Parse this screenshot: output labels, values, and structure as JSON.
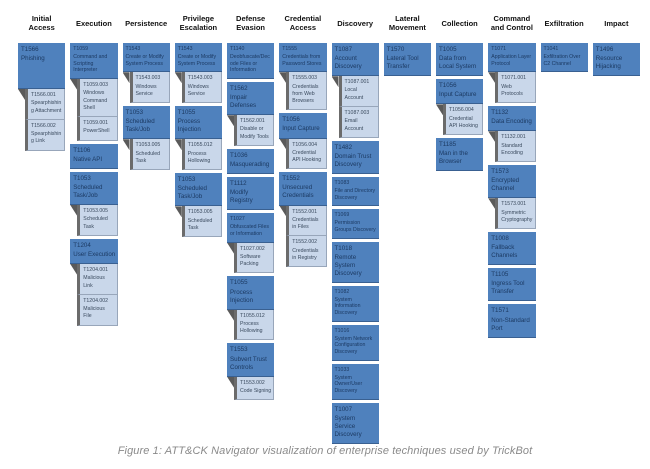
{
  "caption": "Figure 1: ATT&CK Navigator visualization of enterprise techniques used by TrickBot",
  "colors": {
    "technique_fill": "#4f81bd",
    "subtechnique_fill": "#c9d7ea",
    "connector_gray": "#5a5a5a",
    "header_text": "#111111",
    "caption_text": "#8a8a8a"
  },
  "matrix": {
    "tactics": [
      {
        "tactic": "Initial Access",
        "techniques": [
          {
            "id": "T1566",
            "name": "Phishing",
            "subs": [
              {
                "id": "T1566.001",
                "name": "Spearphishing Attachment"
              },
              {
                "id": "T1566.002",
                "name": "Spearphishing Link"
              }
            ]
          }
        ]
      },
      {
        "tactic": "Execution",
        "techniques": [
          {
            "id": "T1059",
            "name": "Command and Scripting Interpreter",
            "subs": [
              {
                "id": "T1059.003",
                "name": "Windows Command Shell"
              },
              {
                "id": "T1059.001",
                "name": "PowerShell"
              }
            ]
          },
          {
            "id": "T1106",
            "name": "Native API"
          },
          {
            "id": "T1053",
            "name": "Scheduled Task/Job",
            "subs": [
              {
                "id": "T1053.005",
                "name": "Scheduled Task"
              }
            ]
          },
          {
            "id": "T1204",
            "name": "User Execution",
            "subs": [
              {
                "id": "T1204.001",
                "name": "Malicious Link"
              },
              {
                "id": "T1204.002",
                "name": "Malicious File"
              }
            ]
          }
        ]
      },
      {
        "tactic": "Persistence",
        "techniques": [
          {
            "id": "T1543",
            "name": "Create or Modify System Process",
            "subs": [
              {
                "id": "T1543.003",
                "name": "Windows Service"
              }
            ]
          },
          {
            "id": "T1053",
            "name": "Scheduled Task/Job",
            "subs": [
              {
                "id": "T1053.005",
                "name": "Scheduled Task"
              }
            ]
          }
        ]
      },
      {
        "tactic": "Privilege Escalation",
        "techniques": [
          {
            "id": "T1543",
            "name": "Create or Modify System Process",
            "subs": [
              {
                "id": "T1543.003",
                "name": "Windows Service"
              }
            ]
          },
          {
            "id": "T1055",
            "name": "Process Injection",
            "subs": [
              {
                "id": "T1055.012",
                "name": "Process Hollowing"
              }
            ]
          },
          {
            "id": "T1053",
            "name": "Scheduled Task/Job",
            "subs": [
              {
                "id": "T1053.005",
                "name": "Scheduled Task"
              }
            ]
          }
        ]
      },
      {
        "tactic": "Defense Evasion",
        "techniques": [
          {
            "id": "T1140",
            "name": "Deobfuscate/Decode Files or Information"
          },
          {
            "id": "T1562",
            "name": "Impair Defenses",
            "subs": [
              {
                "id": "T1562.001",
                "name": "Disable or Modify Tools"
              }
            ]
          },
          {
            "id": "T1036",
            "name": "Masquerading"
          },
          {
            "id": "T1112",
            "name": "Modify Registry"
          },
          {
            "id": "T1027",
            "name": "Obfuscated Files or Information",
            "subs": [
              {
                "id": "T1027.002",
                "name": "Software Packing"
              }
            ]
          },
          {
            "id": "T1055",
            "name": "Process Injection",
            "subs": [
              {
                "id": "T1055.012",
                "name": "Process Hollowing"
              }
            ]
          },
          {
            "id": "T1553",
            "name": "Subvert Trust Controls",
            "subs": [
              {
                "id": "T1553.002",
                "name": "Code Signing"
              }
            ]
          }
        ]
      },
      {
        "tactic": "Credential Access",
        "techniques": [
          {
            "id": "T1555",
            "name": "Credentials from Password Stores",
            "subs": [
              {
                "id": "T1555.003",
                "name": "Credentials from Web Browsers"
              }
            ]
          },
          {
            "id": "T1056",
            "name": "Input Capture",
            "subs": [
              {
                "id": "T1056.004",
                "name": "Credential API Hooking"
              }
            ]
          },
          {
            "id": "T1552",
            "name": "Unsecured Credentials",
            "subs": [
              {
                "id": "T1552.001",
                "name": "Credentials in Files"
              },
              {
                "id": "T1552.002",
                "name": "Credentials in Registry"
              }
            ]
          }
        ]
      },
      {
        "tactic": "Discovery",
        "techniques": [
          {
            "id": "T1087",
            "name": "Account Discovery",
            "subs": [
              {
                "id": "T1087.001",
                "name": "Local Account"
              },
              {
                "id": "T1087.003",
                "name": "Email Account"
              }
            ]
          },
          {
            "id": "T1482",
            "name": "Domain Trust Discovery"
          },
          {
            "id": "T1083",
            "name": "File and Directory Discovery"
          },
          {
            "id": "T1069",
            "name": "Permission Groups Discovery"
          },
          {
            "id": "T1018",
            "name": "Remote System Discovery"
          },
          {
            "id": "T1082",
            "name": "System Information Discovery"
          },
          {
            "id": "T1016",
            "name": "System Network Configuration Discovery"
          },
          {
            "id": "T1033",
            "name": "System Owner/User Discovery"
          },
          {
            "id": "T1007",
            "name": "System Service Discovery"
          }
        ]
      },
      {
        "tactic": "Lateral Movement",
        "techniques": [
          {
            "id": "T1570",
            "name": "Lateral Tool Transfer"
          }
        ]
      },
      {
        "tactic": "Collection",
        "techniques": [
          {
            "id": "T1005",
            "name": "Data from Local System"
          },
          {
            "id": "T1056",
            "name": "Input Capture",
            "subs": [
              {
                "id": "T1056.004",
                "name": "Credential API Hooking"
              }
            ]
          },
          {
            "id": "T1185",
            "name": "Man in the Browser"
          }
        ]
      },
      {
        "tactic": "Command and Control",
        "techniques": [
          {
            "id": "T1071",
            "name": "Application Layer Protocol",
            "subs": [
              {
                "id": "T1071.001",
                "name": "Web Protocols"
              }
            ]
          },
          {
            "id": "T1132",
            "name": "Data Encoding",
            "subs": [
              {
                "id": "T1132.001",
                "name": "Standard Encoding"
              }
            ]
          },
          {
            "id": "T1573",
            "name": "Encrypted Channel",
            "subs": [
              {
                "id": "T1573.001",
                "name": "Symmetric Cryptography"
              }
            ]
          },
          {
            "id": "T1008",
            "name": "Fallback Channels"
          },
          {
            "id": "T1105",
            "name": "Ingress Tool Transfer"
          },
          {
            "id": "T1571",
            "name": "Non-Standard Port"
          }
        ]
      },
      {
        "tactic": "Exfiltration",
        "techniques": [
          {
            "id": "T1041",
            "name": "Exfiltration Over C2 Channel"
          }
        ]
      },
      {
        "tactic": "Impact",
        "techniques": [
          {
            "id": "T1496",
            "name": "Resource Hijacking"
          }
        ]
      }
    ]
  }
}
